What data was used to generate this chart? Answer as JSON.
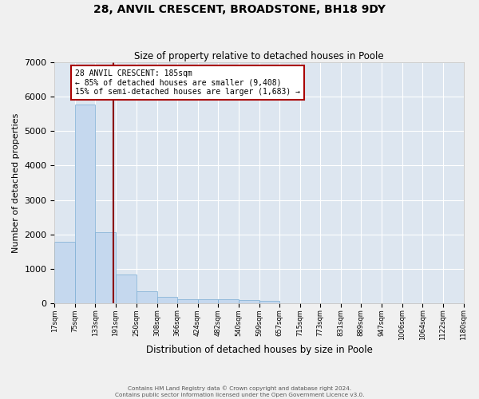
{
  "title": "28, ANVIL CRESCENT, BROADSTONE, BH18 9DY",
  "subtitle": "Size of property relative to detached houses in Poole",
  "xlabel": "Distribution of detached houses by size in Poole",
  "ylabel": "Number of detached properties",
  "bin_edges": [
    17,
    75,
    133,
    191,
    250,
    308,
    366,
    424,
    482,
    540,
    599,
    657,
    715,
    773,
    831,
    889,
    947,
    1006,
    1064,
    1122,
    1180
  ],
  "bar_heights": [
    1780,
    5780,
    2060,
    830,
    340,
    185,
    120,
    110,
    100,
    80,
    60,
    0,
    0,
    0,
    0,
    0,
    0,
    0,
    0,
    0
  ],
  "bar_color": "#c5d8ee",
  "bar_edgecolor": "#7aadd4",
  "vline_x": 185,
  "vline_color": "#8b0000",
  "annotation_text": "28 ANVIL CRESCENT: 185sqm\n← 85% of detached houses are smaller (9,408)\n15% of semi-detached houses are larger (1,683) →",
  "annotation_box_color": "#ffffff",
  "annotation_border_color": "#aa0000",
  "ylim": [
    0,
    7000
  ],
  "yticks": [
    0,
    1000,
    2000,
    3000,
    4000,
    5000,
    6000,
    7000
  ],
  "tick_labels": [
    "17sqm",
    "75sqm",
    "133sqm",
    "191sqm",
    "250sqm",
    "308sqm",
    "366sqm",
    "424sqm",
    "482sqm",
    "540sqm",
    "599sqm",
    "657sqm",
    "715sqm",
    "773sqm",
    "831sqm",
    "889sqm",
    "947sqm",
    "1006sqm",
    "1064sqm",
    "1122sqm",
    "1180sqm"
  ],
  "background_color": "#dde6f0",
  "fig_background_color": "#f0f0f0",
  "grid_color": "#ffffff",
  "footer_line1": "Contains HM Land Registry data © Crown copyright and database right 2024.",
  "footer_line2": "Contains public sector information licensed under the Open Government Licence v3.0."
}
